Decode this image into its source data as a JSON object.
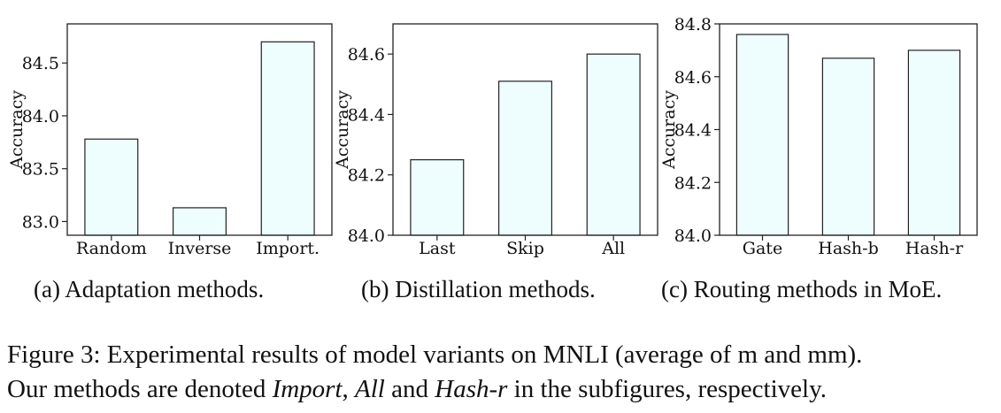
{
  "chart_data": [
    {
      "type": "bar",
      "categories": [
        "Random",
        "Inverse",
        "Import."
      ],
      "values": [
        83.78,
        83.13,
        84.7
      ],
      "xlabel": "",
      "ylabel": "Accuracy",
      "ylim": [
        82.87,
        84.87
      ],
      "yticks": [
        "83.0",
        "83.5",
        "84.0",
        "84.5"
      ],
      "ytick_values": [
        83.0,
        83.5,
        84.0,
        84.5
      ],
      "bar_color": "#eefefe",
      "edge_color": "#222222",
      "grid": false,
      "subcaption": "(a) Adaptation methods."
    },
    {
      "type": "bar",
      "categories": [
        "Last",
        "Skip",
        "All"
      ],
      "values": [
        84.25,
        84.51,
        84.6
      ],
      "xlabel": "",
      "ylabel": "Accuracy",
      "ylim": [
        84.0,
        84.7
      ],
      "yticks": [
        "84.0",
        "84.2",
        "84.4",
        "84.6"
      ],
      "ytick_values": [
        84.0,
        84.2,
        84.4,
        84.6
      ],
      "bar_color": "#eefefe",
      "edge_color": "#222222",
      "grid": false,
      "subcaption": "(b) Distillation methods."
    },
    {
      "type": "bar",
      "categories": [
        "Gate",
        "Hash-b",
        "Hash-r"
      ],
      "values": [
        84.76,
        84.67,
        84.7
      ],
      "xlabel": "",
      "ylabel": "Accuracy",
      "ylim": [
        84.0,
        84.8
      ],
      "yticks": [
        "84.0",
        "84.2",
        "84.4",
        "84.6",
        "84.8"
      ],
      "ytick_values": [
        84.0,
        84.2,
        84.4,
        84.6,
        84.8
      ],
      "bar_color": "#eefefe",
      "edge_color": "#222222",
      "grid": false,
      "subcaption": "(c) Routing methods in MoE."
    }
  ],
  "caption": {
    "line1": "Figure 3: Experimental results of model variants on MNLI (average of m and mm).",
    "line2_pre": "Our methods are denoted ",
    "em1": "Import",
    "sep1": ", ",
    "em2": "All",
    "sep2": " and ",
    "em3": "Hash-r",
    "line2_post": " in the subfigures, respectively."
  }
}
